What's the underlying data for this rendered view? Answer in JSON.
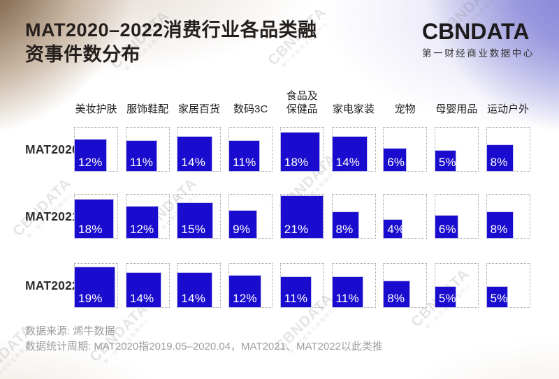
{
  "header": {
    "title_line1": "MAT2020–2022消费行业各品类融",
    "title_line2": "资事件数分布",
    "logo_text": "CBNDATA",
    "logo_subtitle": "第一财经商业数据中心"
  },
  "chart_data": {
    "type": "bar",
    "title": "MAT2020–2022消费行业各品类融资事件数分布",
    "categories": [
      "美妆护肤",
      "服饰鞋配",
      "家居百货",
      "数码3C",
      "食品及\n保健品",
      "家电家装",
      "宠物",
      "母婴用品",
      "运动户外"
    ],
    "series": [
      {
        "name": "MAT2020",
        "values": [
          12,
          11,
          14,
          11,
          18,
          14,
          6,
          5,
          8
        ]
      },
      {
        "name": "MAT2021",
        "values": [
          18,
          12,
          15,
          9,
          21,
          8,
          4,
          6,
          8
        ]
      },
      {
        "name": "MAT2022",
        "values": [
          19,
          14,
          14,
          12,
          11,
          11,
          8,
          5,
          5
        ]
      }
    ],
    "value_suffix": "%",
    "unit": "percent of financing events",
    "legend_position": "none",
    "grid": "dotted reference box per cell, square area proportional to value"
  },
  "footer": {
    "source": "数据来源: 烯牛数据",
    "period": "数据统计周期: MAT2020指2019.05–2020.04，MAT2021、MAT2022以此类推"
  },
  "watermark": {
    "text": "CBNDATA",
    "subtext": "第一财经商业数据中心"
  },
  "colors": {
    "bar_blue": "#1A0CCE",
    "title_text": "#241F1C",
    "footer_text": "#9D9D9D",
    "corner_brown": "#8A7058",
    "corner_purple": "#8585D8",
    "dotted_border": "#A3A3A3"
  }
}
